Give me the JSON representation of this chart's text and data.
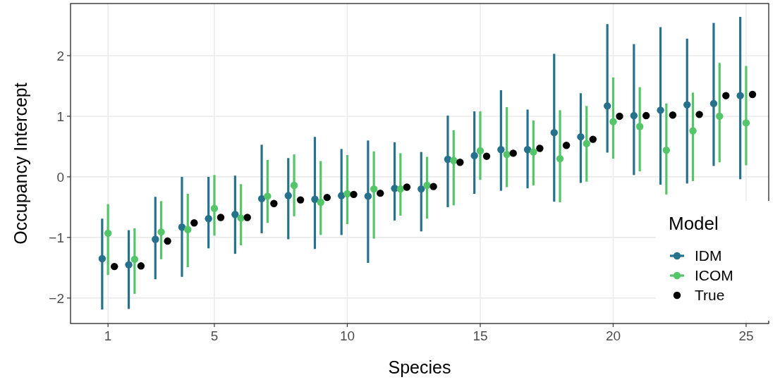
{
  "chart_data": {
    "type": "scatter",
    "xlabel": "Species",
    "ylabel": "Occupancy Intercept",
    "legend_title": "Model",
    "legend": "bottom right",
    "grid": true,
    "marker": "circle",
    "xlim": [
      -0.41,
      25.85
    ],
    "xticks": [
      1,
      5,
      10,
      15,
      20,
      25
    ],
    "ylim": [
      -2.42,
      2.86
    ],
    "yticks": [
      {
        "value": -2,
        "label": "−2"
      },
      {
        "value": -1,
        "label": "−1"
      },
      0,
      1,
      2
    ],
    "series": [
      {
        "name": "IDM",
        "color": "#26728c",
        "x": [
          0.78,
          1.78,
          2.78,
          3.78,
          4.78,
          5.78,
          6.78,
          7.78,
          8.78,
          9.78,
          10.78,
          11.78,
          12.78,
          13.78,
          14.78,
          15.78,
          16.78,
          17.78,
          18.78,
          19.78,
          20.78,
          21.78,
          22.78,
          23.78,
          24.78
        ],
        "values": [
          -1.35,
          -1.45,
          -1.03,
          -0.83,
          -0.69,
          -0.62,
          -0.36,
          -0.31,
          -0.37,
          -0.31,
          -0.32,
          -0.19,
          -0.2,
          0.29,
          0.35,
          0.45,
          0.45,
          0.73,
          0.66,
          1.17,
          1.01,
          1.1,
          1.19,
          1.21,
          1.34
        ],
        "errors": [
          [
            -2.19,
            -0.69
          ],
          [
            -2.18,
            -0.88
          ],
          [
            -1.69,
            -0.33
          ],
          [
            -1.65,
            0.0
          ],
          [
            -1.18,
            0.0
          ],
          [
            -1.27,
            0.02
          ],
          [
            -0.93,
            0.53
          ],
          [
            -1.03,
            0.31
          ],
          [
            -1.19,
            0.66
          ],
          [
            -0.96,
            0.46
          ],
          [
            -1.42,
            0.6
          ],
          [
            -0.72,
            0.57
          ],
          [
            -0.9,
            0.41
          ],
          [
            -0.5,
            1.01
          ],
          [
            -0.28,
            1.08
          ],
          [
            -0.23,
            1.43
          ],
          [
            -0.19,
            1.11
          ],
          [
            -0.41,
            2.03
          ],
          [
            -0.1,
            1.38
          ],
          [
            0.4,
            2.52
          ],
          [
            0.03,
            2.19
          ],
          [
            -0.13,
            2.47
          ],
          [
            -0.11,
            2.28
          ],
          [
            0.18,
            2.54
          ],
          [
            -0.04,
            2.64
          ]
        ]
      },
      {
        "name": "ICOM",
        "color": "#54c568",
        "x": [
          1,
          2,
          3,
          4,
          5,
          6,
          7,
          8,
          9,
          10,
          11,
          12,
          13,
          14,
          15,
          16,
          17,
          18,
          19,
          20,
          21,
          22,
          23,
          24,
          25
        ],
        "values": [
          -0.93,
          -1.36,
          -0.91,
          -0.87,
          -0.52,
          -0.68,
          -0.32,
          -0.14,
          -0.42,
          -0.28,
          -0.2,
          -0.2,
          -0.14,
          0.27,
          0.43,
          0.37,
          0.41,
          0.3,
          0.55,
          0.91,
          0.83,
          0.44,
          0.76,
          1.0,
          0.89
        ],
        "errors": [
          [
            -1.62,
            -0.45
          ],
          [
            -1.93,
            -0.85
          ],
          [
            -1.36,
            -0.4
          ],
          [
            -1.49,
            -0.28
          ],
          [
            -0.97,
            0.03
          ],
          [
            -1.13,
            -0.12
          ],
          [
            -0.76,
            0.28
          ],
          [
            -0.65,
            0.37
          ],
          [
            -0.96,
            0.26
          ],
          [
            -0.78,
            0.36
          ],
          [
            -1.02,
            0.42
          ],
          [
            -0.64,
            0.39
          ],
          [
            -0.69,
            0.33
          ],
          [
            -0.47,
            0.77
          ],
          [
            -0.05,
            1.08
          ],
          [
            -0.17,
            1.15
          ],
          [
            -0.14,
            0.93
          ],
          [
            -0.42,
            1.1
          ],
          [
            -0.08,
            1.17
          ],
          [
            0.3,
            1.64
          ],
          [
            0.09,
            1.48
          ],
          [
            -0.29,
            1.21
          ],
          [
            -0.07,
            1.39
          ],
          [
            0.24,
            1.88
          ],
          [
            0.19,
            1.83
          ]
        ]
      },
      {
        "name": "True",
        "color": "#000000",
        "x": [
          1.24,
          2.24,
          3.24,
          4.24,
          5.24,
          6.24,
          7.24,
          8.24,
          9.24,
          10.24,
          11.24,
          12.24,
          13.24,
          14.24,
          15.24,
          16.24,
          17.24,
          18.24,
          19.24,
          20.24,
          21.24,
          22.24,
          23.24,
          24.24,
          25.24
        ],
        "values": [
          -1.48,
          -1.47,
          -1.06,
          -0.76,
          -0.67,
          -0.67,
          -0.44,
          -0.38,
          -0.34,
          -0.29,
          -0.27,
          -0.17,
          -0.16,
          0.24,
          0.34,
          0.39,
          0.47,
          0.52,
          0.62,
          1.0,
          1.01,
          1.02,
          1.03,
          1.34,
          1.36
        ]
      }
    ]
  }
}
